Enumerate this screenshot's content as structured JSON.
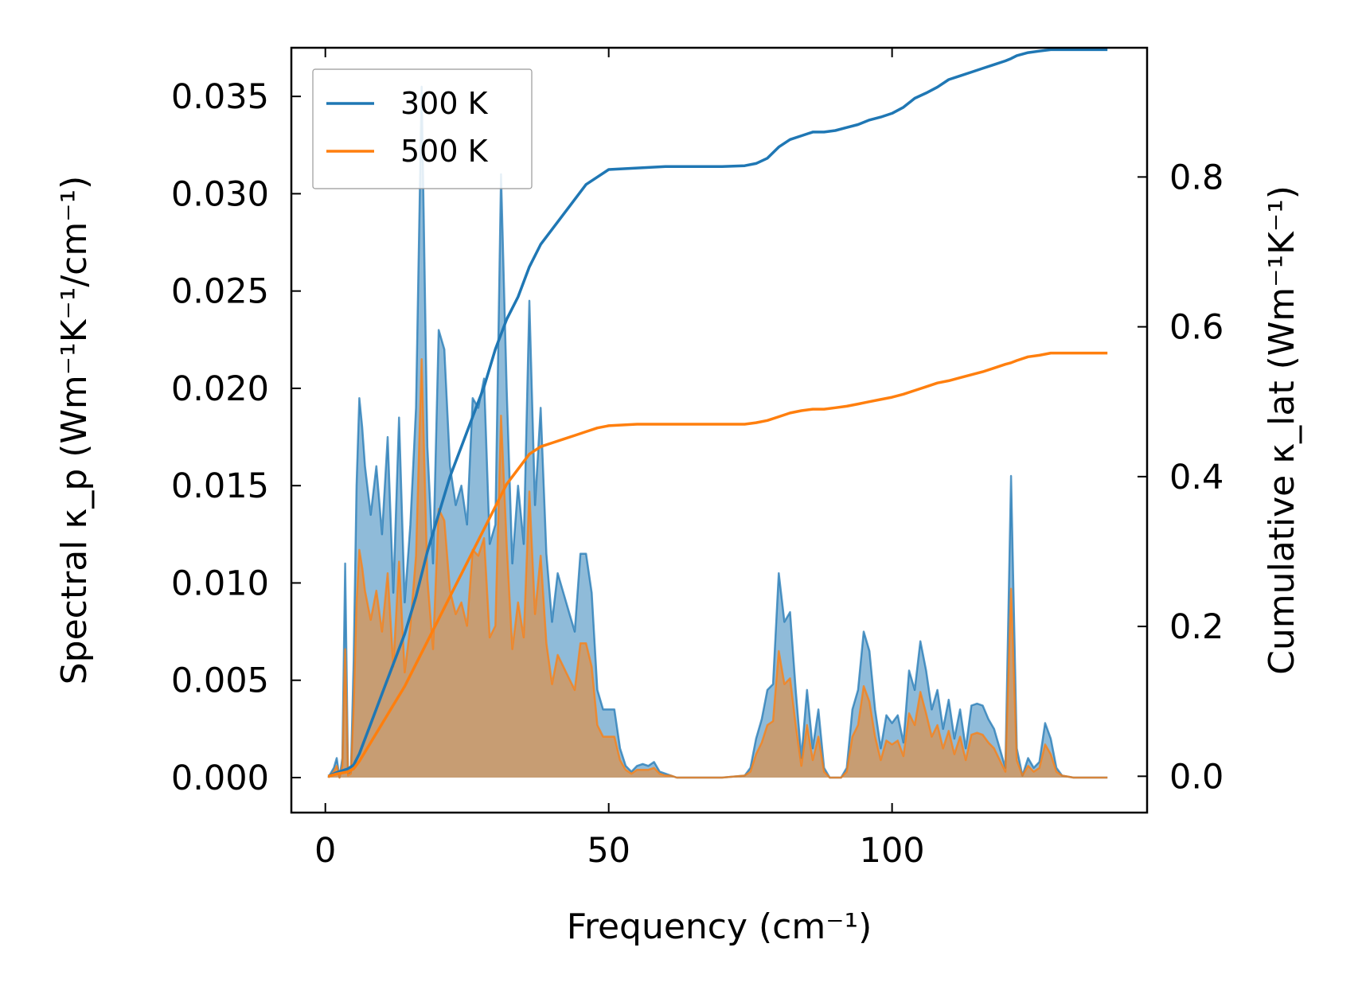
{
  "chart_data": {
    "type": "line",
    "xlabel": "Frequency (cm⁻¹)",
    "ylabel_left": "Spectral κ_p (Wm⁻¹K⁻¹/cm⁻¹)",
    "ylabel_right": "Cumulative κ_lat (Wm⁻¹K⁻¹)",
    "xlim": [
      -6,
      145
    ],
    "ylim_left": [
      -0.0018,
      0.0375
    ],
    "ylim_right": [
      -0.0485,
      0.9725
    ],
    "xticks": [
      0,
      50,
      100
    ],
    "yticks_left": [
      0.0,
      0.005,
      0.01,
      0.015,
      0.02,
      0.025,
      0.03,
      0.035
    ],
    "yticks_right": [
      0.0,
      0.2,
      0.4,
      0.6,
      0.8
    ],
    "legend": {
      "position": "top-left",
      "entries": [
        "300 K",
        "500 K"
      ]
    },
    "colors": {
      "300 K": "#1f77b4",
      "500 K": "#ff7f0e",
      "fill_300": "#1f77b4",
      "fill_500": "#ff7f0e"
    },
    "series": [
      {
        "name": "300 K",
        "kind": "spectral",
        "x": [
          0.5,
          1.5,
          2.0,
          2.5,
          3.0,
          3.5,
          4.0,
          4.5,
          5.0,
          5.5,
          6.0,
          6.5,
          7.0,
          8.0,
          9.0,
          10.0,
          11.0,
          12.0,
          13.0,
          14.0,
          15.0,
          16.0,
          17.0,
          18.0,
          19.0,
          20.0,
          21.0,
          22.0,
          23.0,
          24.0,
          25.0,
          26.0,
          27.0,
          28.0,
          29.0,
          30.0,
          31.0,
          32.0,
          33.0,
          34.0,
          35.0,
          36.0,
          37.0,
          38.0,
          39.0,
          40.0,
          41.0,
          42.0,
          43.0,
          44.0,
          45.0,
          46.0,
          47.0,
          48.0,
          49.0,
          50.0,
          51.0,
          52.0,
          53.0,
          54.0,
          55.0,
          56.0,
          57.0,
          58.0,
          59.0,
          60.0,
          61.0,
          62.0,
          65.0,
          70.0,
          74.0,
          75.0,
          76.0,
          77.0,
          78.0,
          79.0,
          80.0,
          81.0,
          82.0,
          83.0,
          84.0,
          85.0,
          86.0,
          87.0,
          88.0,
          89.0,
          90.0,
          91.0,
          92.0,
          93.0,
          94.0,
          95.0,
          96.0,
          97.0,
          98.0,
          99.0,
          100.0,
          101.0,
          102.0,
          103.0,
          104.0,
          105.0,
          106.0,
          107.0,
          108.0,
          109.0,
          110.0,
          111.0,
          112.0,
          113.0,
          114.0,
          115.0,
          116.0,
          117.0,
          118.0,
          119.0,
          120.0,
          121.0,
          122.0,
          123.0,
          124.0,
          125.0,
          126.0,
          127.0,
          128.0,
          129.0,
          130.0,
          132.0,
          135.0,
          138.0
        ],
        "values": [
          0.0,
          0.0005,
          0.001,
          0.0,
          0.001,
          0.011,
          0.0002,
          0.0003,
          0.006,
          0.015,
          0.0195,
          0.018,
          0.016,
          0.0135,
          0.016,
          0.0125,
          0.0175,
          0.0095,
          0.0185,
          0.009,
          0.013,
          0.019,
          0.0355,
          0.017,
          0.011,
          0.023,
          0.022,
          0.016,
          0.014,
          0.015,
          0.013,
          0.0195,
          0.019,
          0.0205,
          0.012,
          0.013,
          0.031,
          0.02,
          0.011,
          0.015,
          0.012,
          0.0245,
          0.014,
          0.019,
          0.0115,
          0.008,
          0.0105,
          0.0095,
          0.0085,
          0.0075,
          0.0115,
          0.0115,
          0.0095,
          0.0045,
          0.0035,
          0.0035,
          0.0035,
          0.0015,
          0.0006,
          0.0003,
          0.0006,
          0.0007,
          0.0006,
          0.0008,
          0.0003,
          0.0002,
          0.0001,
          0.0,
          0.0,
          0.0,
          0.0001,
          0.0005,
          0.002,
          0.003,
          0.0045,
          0.0048,
          0.0105,
          0.008,
          0.0085,
          0.0045,
          0.001,
          0.0045,
          0.0015,
          0.0035,
          0.0005,
          0.0,
          0.0,
          0.0,
          0.0005,
          0.0035,
          0.0045,
          0.0075,
          0.0065,
          0.0035,
          0.0015,
          0.0032,
          0.0028,
          0.0032,
          0.0018,
          0.0055,
          0.0045,
          0.007,
          0.0055,
          0.0035,
          0.0045,
          0.0025,
          0.004,
          0.002,
          0.0035,
          0.0015,
          0.0037,
          0.0038,
          0.0037,
          0.003,
          0.0025,
          0.0015,
          0.0005,
          0.0155,
          0.0015,
          0.0001,
          0.001,
          0.0005,
          0.0008,
          0.0028,
          0.002,
          0.0005,
          0.0001,
          0.0,
          0.0,
          0.0
        ]
      },
      {
        "name": "500 K",
        "kind": "spectral",
        "x": [
          0.5,
          1.5,
          2.0,
          2.5,
          3.0,
          3.5,
          4.0,
          4.5,
          5.0,
          5.5,
          6.0,
          6.5,
          7.0,
          8.0,
          9.0,
          10.0,
          11.0,
          12.0,
          13.0,
          14.0,
          15.0,
          16.0,
          17.0,
          18.0,
          19.0,
          20.0,
          21.0,
          22.0,
          23.0,
          24.0,
          25.0,
          26.0,
          27.0,
          28.0,
          29.0,
          30.0,
          31.0,
          32.0,
          33.0,
          34.0,
          35.0,
          36.0,
          37.0,
          38.0,
          39.0,
          40.0,
          41.0,
          42.0,
          43.0,
          44.0,
          45.0,
          46.0,
          47.0,
          48.0,
          49.0,
          50.0,
          51.0,
          52.0,
          53.0,
          54.0,
          55.0,
          56.0,
          57.0,
          58.0,
          59.0,
          60.0,
          61.0,
          62.0,
          65.0,
          70.0,
          74.0,
          75.0,
          76.0,
          77.0,
          78.0,
          79.0,
          80.0,
          81.0,
          82.0,
          83.0,
          84.0,
          85.0,
          86.0,
          87.0,
          88.0,
          89.0,
          90.0,
          91.0,
          92.0,
          93.0,
          94.0,
          95.0,
          96.0,
          97.0,
          98.0,
          99.0,
          100.0,
          101.0,
          102.0,
          103.0,
          104.0,
          105.0,
          106.0,
          107.0,
          108.0,
          109.0,
          110.0,
          111.0,
          112.0,
          113.0,
          114.0,
          115.0,
          116.0,
          117.0,
          118.0,
          119.0,
          120.0,
          121.0,
          122.0,
          123.0,
          124.0,
          125.0,
          126.0,
          127.0,
          128.0,
          129.0,
          130.0,
          132.0,
          135.0,
          138.0
        ],
        "values": [
          0.0,
          0.0003,
          0.0006,
          0.0,
          0.0006,
          0.0066,
          0.0001,
          0.0002,
          0.0036,
          0.009,
          0.0117,
          0.0108,
          0.0096,
          0.0081,
          0.0096,
          0.0075,
          0.0105,
          0.0057,
          0.0111,
          0.0054,
          0.0078,
          0.0114,
          0.0215,
          0.0102,
          0.0066,
          0.0138,
          0.0132,
          0.0096,
          0.0084,
          0.009,
          0.0078,
          0.0117,
          0.0114,
          0.0123,
          0.0072,
          0.0078,
          0.0186,
          0.012,
          0.0066,
          0.009,
          0.0072,
          0.0147,
          0.0084,
          0.0114,
          0.0069,
          0.0048,
          0.0063,
          0.0057,
          0.0051,
          0.0045,
          0.0069,
          0.0069,
          0.0057,
          0.0027,
          0.0021,
          0.0021,
          0.0021,
          0.0009,
          0.0004,
          0.0002,
          0.0004,
          0.0004,
          0.0004,
          0.0005,
          0.0002,
          0.0001,
          0.0001,
          0.0,
          0.0,
          0.0,
          0.0001,
          0.0003,
          0.0012,
          0.0018,
          0.0027,
          0.0029,
          0.0065,
          0.0048,
          0.0051,
          0.0027,
          0.0006,
          0.0027,
          0.0009,
          0.0021,
          0.0003,
          0.0,
          0.0,
          0.0,
          0.0003,
          0.0021,
          0.0027,
          0.0047,
          0.0039,
          0.0021,
          0.0009,
          0.0019,
          0.0017,
          0.0019,
          0.0011,
          0.0033,
          0.0027,
          0.0044,
          0.0033,
          0.0021,
          0.0027,
          0.0015,
          0.0024,
          0.0012,
          0.0021,
          0.0009,
          0.0022,
          0.0023,
          0.0022,
          0.0018,
          0.0015,
          0.0009,
          0.0003,
          0.0097,
          0.0009,
          0.0001,
          0.0006,
          0.0003,
          0.0005,
          0.0017,
          0.0012,
          0.0003,
          0.0001,
          0.0,
          0.0,
          0.0
        ]
      },
      {
        "name": "300 K",
        "kind": "cumulative",
        "x": [
          0.5,
          2,
          4,
          5,
          6,
          8,
          10,
          12,
          14,
          16,
          18,
          20,
          22,
          24,
          26,
          28,
          30,
          32,
          34,
          36,
          38,
          40,
          42,
          44,
          46,
          48,
          50,
          55,
          60,
          65,
          70,
          74,
          76,
          78,
          80,
          82,
          84,
          86,
          88,
          90,
          92,
          94,
          96,
          98,
          100,
          102,
          104,
          106,
          108,
          110,
          112,
          114,
          116,
          118,
          120,
          121,
          122,
          124,
          126,
          128,
          130,
          135,
          138
        ],
        "values": [
          0.0,
          0.005,
          0.01,
          0.015,
          0.03,
          0.07,
          0.11,
          0.15,
          0.19,
          0.24,
          0.3,
          0.35,
          0.4,
          0.44,
          0.48,
          0.52,
          0.57,
          0.61,
          0.64,
          0.68,
          0.71,
          0.73,
          0.75,
          0.77,
          0.79,
          0.8,
          0.81,
          0.812,
          0.814,
          0.814,
          0.814,
          0.815,
          0.818,
          0.825,
          0.84,
          0.85,
          0.855,
          0.86,
          0.86,
          0.862,
          0.866,
          0.87,
          0.876,
          0.88,
          0.885,
          0.893,
          0.905,
          0.912,
          0.92,
          0.93,
          0.935,
          0.94,
          0.945,
          0.95,
          0.955,
          0.958,
          0.962,
          0.966,
          0.968,
          0.97,
          0.97,
          0.97,
          0.97
        ]
      },
      {
        "name": "500 K",
        "kind": "cumulative",
        "x": [
          0.5,
          2,
          4,
          5,
          6,
          8,
          10,
          12,
          14,
          16,
          18,
          20,
          22,
          24,
          26,
          28,
          30,
          32,
          34,
          36,
          38,
          40,
          42,
          44,
          46,
          48,
          50,
          55,
          60,
          65,
          70,
          74,
          76,
          78,
          80,
          82,
          84,
          86,
          88,
          90,
          92,
          94,
          96,
          98,
          100,
          102,
          104,
          106,
          108,
          110,
          112,
          114,
          116,
          118,
          120,
          121,
          122,
          124,
          126,
          128,
          130,
          135,
          138
        ],
        "values": [
          0.0,
          0.003,
          0.006,
          0.01,
          0.02,
          0.045,
          0.07,
          0.095,
          0.12,
          0.15,
          0.18,
          0.21,
          0.24,
          0.27,
          0.3,
          0.33,
          0.36,
          0.39,
          0.41,
          0.43,
          0.44,
          0.445,
          0.45,
          0.455,
          0.46,
          0.465,
          0.468,
          0.47,
          0.47,
          0.47,
          0.47,
          0.47,
          0.472,
          0.475,
          0.48,
          0.485,
          0.488,
          0.49,
          0.49,
          0.492,
          0.494,
          0.497,
          0.5,
          0.503,
          0.506,
          0.51,
          0.515,
          0.52,
          0.525,
          0.528,
          0.532,
          0.536,
          0.54,
          0.545,
          0.55,
          0.552,
          0.555,
          0.56,
          0.562,
          0.565,
          0.565,
          0.565,
          0.565
        ]
      }
    ]
  }
}
